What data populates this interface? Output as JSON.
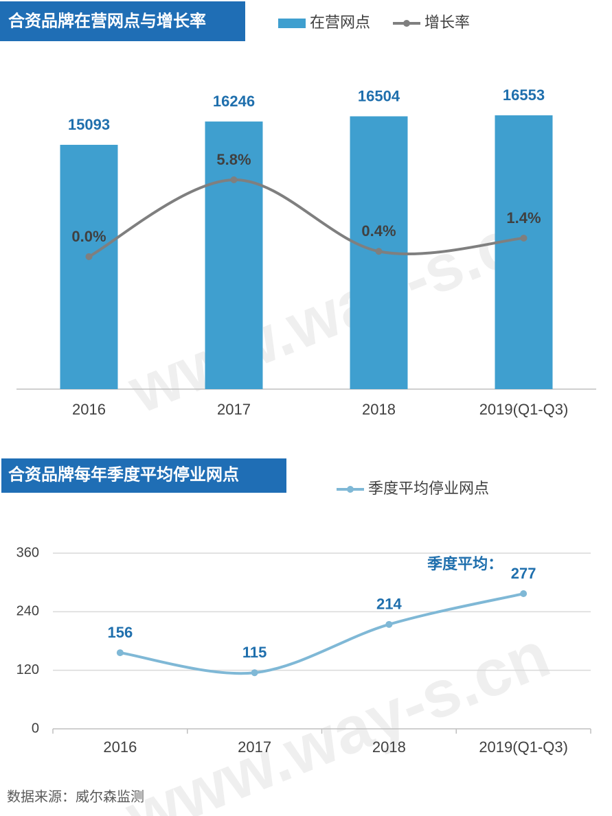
{
  "chart_data": [
    {
      "type": "bar",
      "title": "合资品牌在营网点与增长率",
      "categories": [
        "2016",
        "2017",
        "2018",
        "2019(Q1-Q3)"
      ],
      "series": [
        {
          "name": "在营网点",
          "type": "bar",
          "color": "#3f9fcf",
          "values": [
            15093,
            16246,
            16504,
            16553
          ]
        },
        {
          "name": "增长率",
          "type": "line",
          "axis": "y2",
          "color": "#7f7f7f",
          "values": [
            0.0,
            5.8,
            0.4,
            1.4
          ],
          "value_labels": [
            "0.0%",
            "5.8%",
            "0.4%",
            "1.4%"
          ]
        }
      ],
      "ylim": [
        3000,
        19000
      ],
      "y2lim": [
        -10,
        14.4
      ],
      "grid": false
    },
    {
      "type": "line",
      "title": "合资品牌每年季度平均停业网点",
      "categories": [
        "2016",
        "2017",
        "2018",
        "2019(Q1-Q3)"
      ],
      "series": [
        {
          "name": "季度平均停业网点",
          "color": "#7fb8d6",
          "values": [
            156,
            115,
            214,
            277
          ]
        }
      ],
      "annotation": "季度平均：",
      "ylim": [
        0,
        360
      ],
      "yticks": [
        0,
        120,
        240,
        360
      ],
      "grid": true
    }
  ],
  "source": "数据来源：威尔森监测",
  "watermark": "www.way-s.cn"
}
